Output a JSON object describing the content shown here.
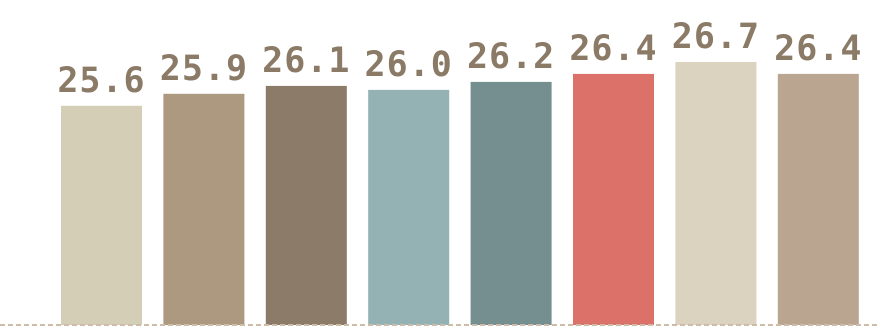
{
  "chart_data": {
    "type": "bar",
    "categories": [
      "",
      "",
      "",
      "",
      "",
      "",
      "",
      ""
    ],
    "values": [
      25.6,
      25.9,
      26.1,
      26.0,
      26.2,
      26.4,
      26.7,
      26.4
    ],
    "data_labels": [
      "25.6",
      "25.9",
      "26.1",
      "26.0",
      "26.2",
      "26.4",
      "26.7",
      "26.4"
    ],
    "bar_colors": [
      "#d5ceb7",
      "#ad9880",
      "#8c7b69",
      "#94b1b3",
      "#758e8f",
      "#db7168",
      "#dbd3bf",
      "#b9a590"
    ],
    "label_color": "#8a7a66",
    "baseline_color": "#cdbca8",
    "ylim": [
      20.1,
      26.95
    ],
    "title": "",
    "xlabel": "",
    "ylabel": "",
    "grid": false,
    "legend": "none"
  }
}
